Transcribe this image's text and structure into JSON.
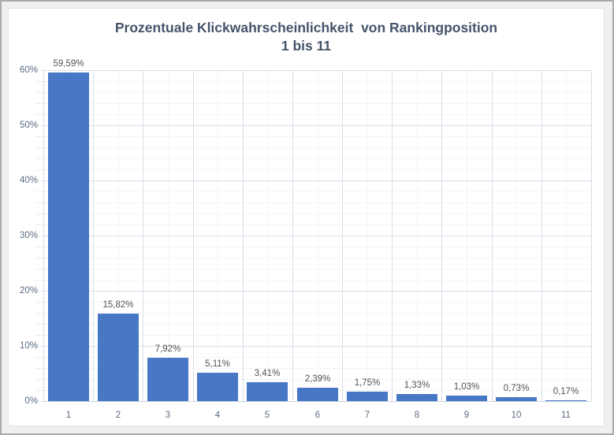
{
  "chart_data": {
    "type": "bar",
    "title_line1": "Prozentuale Klickwahrscheinlichkeit  von Rankingposition",
    "title_line2": "1 bis 11",
    "title": "Prozentuale Klickwahrscheinlichkeit von Rankingposition 1 bis 11",
    "xlabel": "",
    "ylabel": "",
    "categories": [
      "1",
      "2",
      "3",
      "4",
      "5",
      "6",
      "7",
      "8",
      "9",
      "10",
      "11"
    ],
    "values": [
      59.59,
      15.82,
      7.92,
      5.11,
      3.41,
      2.39,
      1.75,
      1.33,
      1.03,
      0.73,
      0.17
    ],
    "value_labels": [
      "59,59%",
      "15,82%",
      "7,92%",
      "5,11%",
      "3,41%",
      "2,39%",
      "1,75%",
      "1,33%",
      "1,03%",
      "0,73%",
      "0,17%"
    ],
    "ylim": [
      0,
      60
    ],
    "y_major_step": 10,
    "y_minor_step": 2,
    "y_tick_labels": [
      "0%",
      "10%",
      "20%",
      "30%",
      "40%",
      "50%",
      "60%"
    ],
    "grid": "horizontal and vertical, major and minor gridlines on",
    "legend": "none",
    "colors": {
      "bar": "#4777C5",
      "title": "#44546A",
      "axis_label": "#5B6C82",
      "data_label": "#525252",
      "gridline_major": "#D8DEE8",
      "gridline_minor": "#F2F4F8",
      "chart_background": "#FFFFFF",
      "frame_background": "#F0F0F0",
      "frame_border": "#ABABAB"
    }
  }
}
